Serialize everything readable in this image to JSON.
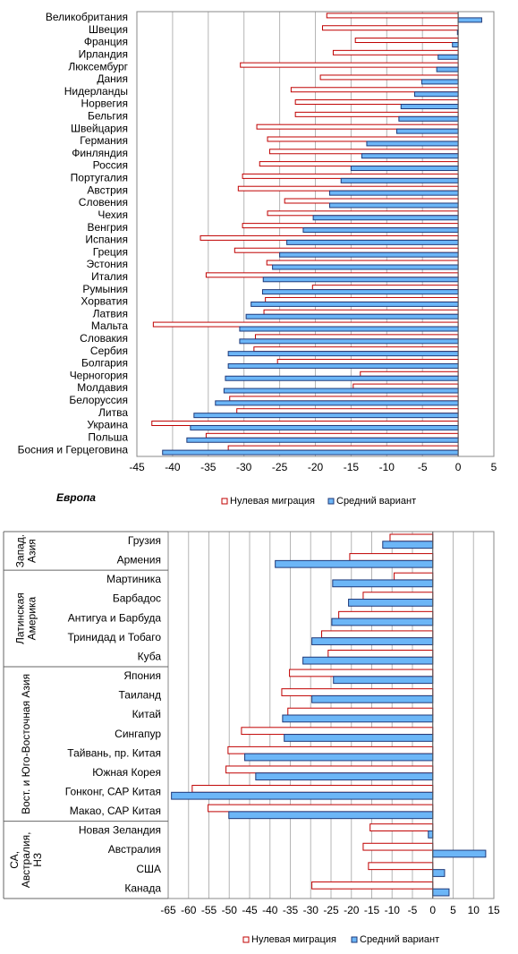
{
  "chart_data": [
    {
      "type": "bar",
      "orientation": "horizontal",
      "title": "Европа",
      "categories": [
        "Великобритания",
        "Швеция",
        "Франция",
        "Ирландия",
        "Люксембург",
        "Дания",
        "Нидерланды",
        "Норвегия",
        "Бельгия",
        "Швейцария",
        "Германия",
        "Финляндия",
        "Россия",
        "Португалия",
        "Австрия",
        "Словения",
        "Чехия",
        "Венгрия",
        "Испания",
        "Греция",
        "Эстония",
        "Италия",
        "Румыния",
        "Хорватия",
        "Латвия",
        "Мальта",
        "Словакия",
        "Сербия",
        "Болгария",
        "Черногория",
        "Молдавия",
        "Белоруссия",
        "Литва",
        "Украина",
        "Польша",
        "Босния и Герцеговина"
      ],
      "series": [
        {
          "name": "Нулевая миграция",
          "color": "#ffffff",
          "edgecolor": "#c00000",
          "values": [
            -18.4,
            -19,
            -14.4,
            -17.5,
            -30.5,
            -19.3,
            -23.4,
            -22.8,
            -22.8,
            -28.2,
            -26.7,
            -26.4,
            -27.8,
            -30.2,
            -30.8,
            -24.3,
            -26.7,
            -30.2,
            -36.1,
            -31.3,
            -26.8,
            -35.3,
            -20.4,
            -27,
            -27.2,
            -42.7,
            -28.4,
            -28.6,
            -25.3,
            -13.7,
            -14.7,
            -32,
            -31,
            -42.9,
            -35.3,
            -32.2
          ]
        },
        {
          "name": "Средний  вариант",
          "color": "#6cb6f7",
          "edgecolor": "#1f3a7a",
          "values": [
            3.3,
            -0.1,
            -0.8,
            -2.8,
            -3,
            -5.1,
            -6.1,
            -8,
            -8.3,
            -8.6,
            -12.8,
            -13.5,
            -15,
            -16.4,
            -18,
            -18,
            -20.3,
            -21.7,
            -24,
            -25,
            -26,
            -27.3,
            -27.4,
            -29,
            -29.7,
            -30.6,
            -30.6,
            -32.2,
            -32.2,
            -32.6,
            -32.8,
            -34,
            -37,
            -37.5,
            -38,
            -41.4
          ]
        }
      ],
      "xlim": [
        -45,
        5
      ],
      "xticks": [
        -45,
        -40,
        -35,
        -30,
        -25,
        -20,
        -15,
        -10,
        -5,
        0,
        5
      ],
      "grid": true,
      "legend": "bottom"
    },
    {
      "type": "bar",
      "orientation": "horizontal",
      "groups": [
        {
          "lines": [
            "Запад.",
            "Азия"
          ],
          "categories": [
            "Грузия",
            "Армения"
          ]
        },
        {
          "lines": [
            "Латинская",
            "Америка"
          ],
          "categories": [
            "Мартиника",
            "Барбадос",
            "Антигуа и Барбуда",
            "Тринидад и Тобаго",
            "Куба"
          ]
        },
        {
          "lines": [
            "Вост. и Юго-Восточная Азия"
          ],
          "categories": [
            "Япония",
            "Таиланд",
            "Китай",
            "Сингапур",
            "Тайвань, пр. Китая",
            "Южная Корея",
            "Гонконг, САР Китая",
            "Макао, САР Китая"
          ]
        },
        {
          "lines": [
            "СА,",
            "Австралия,",
            "НЗ"
          ],
          "categories": [
            "Новая Зеландия",
            "Австралия",
            "США",
            "Канада"
          ]
        }
      ],
      "series": [
        {
          "name": "Нулевая миграция",
          "color": "#ffffff",
          "edgecolor": "#c00000",
          "values": [
            -10.5,
            -20.4,
            -9.5,
            -17.1,
            -23.1,
            -27.3,
            -25.7,
            -35.2,
            -37.1,
            -35.6,
            -47,
            -50.3,
            -50.8,
            -59.1,
            -55.2,
            -15.4,
            -17.1,
            -15.8,
            -29.7
          ]
        },
        {
          "name": "Средний вариант",
          "color": "#6cb6f7",
          "edgecolor": "#1f3a7a",
          "values": [
            -12.3,
            -38.7,
            -24.6,
            -20.7,
            -24.8,
            -29.7,
            -31.9,
            -24.4,
            -29.7,
            -36.9,
            -36.5,
            -46.2,
            -43.5,
            -64.2,
            -50.1,
            -1.1,
            13,
            2.9,
            4
          ]
        }
      ],
      "xlim": [
        -65,
        15
      ],
      "xticks": [
        -65,
        -60,
        -55,
        -50,
        -45,
        -40,
        -35,
        -30,
        -25,
        -20,
        -15,
        -10,
        -5,
        0,
        5,
        10,
        15
      ],
      "grid": true,
      "legend": "bottom"
    }
  ]
}
